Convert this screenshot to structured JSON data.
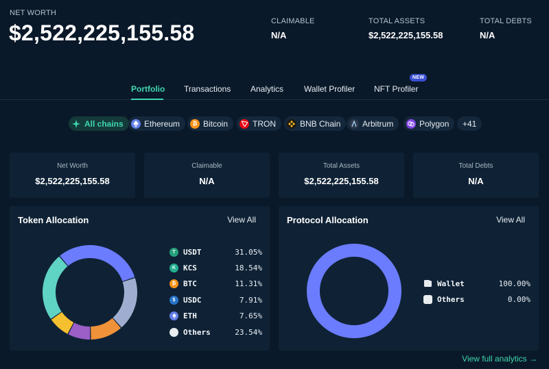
{
  "header": {
    "net_worth_label": "NET WORTH",
    "net_worth_value": "$2,522,225,155.58",
    "claimable_label": "CLAIMABLE",
    "claimable_value": "N/A",
    "total_assets_label": "TOTAL ASSETS",
    "total_assets_value": "$2,522,225,155.58",
    "total_debts_label": "TOTAL DEBTS",
    "total_debts_value": "N/A"
  },
  "tabs": [
    {
      "label": "Portfolio",
      "active": true
    },
    {
      "label": "Transactions"
    },
    {
      "label": "Analytics"
    },
    {
      "label": "Wallet Profiler"
    },
    {
      "label": "NFT Profiler"
    }
  ],
  "new_badge": "NEW",
  "chains": [
    {
      "label": "All chains",
      "icon": "sparkle-icon",
      "color": "#3fd6b0"
    },
    {
      "label": "Ethereum",
      "icon": "ethereum-icon",
      "color": "#627eea"
    },
    {
      "label": "Bitcoin",
      "icon": "bitcoin-icon",
      "color": "#f7931a"
    },
    {
      "label": "TRON",
      "icon": "tron-icon",
      "color": "#e50914"
    },
    {
      "label": "BNB Chain",
      "icon": "bnb-icon",
      "color": "#f3ba2f"
    },
    {
      "label": "Arbitrum",
      "icon": "arbitrum-icon",
      "color": "#2d374b"
    },
    {
      "label": "Polygon",
      "icon": "polygon-icon",
      "color": "#8247e5"
    },
    {
      "label": "+41"
    }
  ],
  "summary": [
    {
      "label": "Net Worth",
      "value": "$2,522,225,155.58"
    },
    {
      "label": "Claimable",
      "value": "N/A"
    },
    {
      "label": "Total Assets",
      "value": "$2,522,225,155.58"
    },
    {
      "label": "Total Debts",
      "value": "N/A"
    }
  ],
  "token_allocation": {
    "title": "Token Allocation",
    "view_all": "View All",
    "items": [
      {
        "symbol": "USDT",
        "pct": "31.05%",
        "value": 31.05,
        "color": "#6b7cff",
        "icon_color": "#26a17b"
      },
      {
        "symbol": "KCS",
        "pct": "18.54%",
        "value": 18.54,
        "color": "#9faed0",
        "icon_color": "#23af91"
      },
      {
        "symbol": "BTC",
        "pct": "11.31%",
        "value": 11.31,
        "color": "#f0923a",
        "icon_color": "#f7931a"
      },
      {
        "symbol": "USDC",
        "pct": "7.91%",
        "value": 7.91,
        "color": "#9b5fc7",
        "icon_color": "#2775ca"
      },
      {
        "symbol": "ETH",
        "pct": "7.65%",
        "value": 7.65,
        "color": "#f5c02f",
        "icon_color": "#627eea"
      },
      {
        "symbol": "Others",
        "pct": "23.54%",
        "value": 23.54,
        "color": "#5fd3c4",
        "icon_color": "#e8ecef"
      }
    ]
  },
  "protocol_allocation": {
    "title": "Protocol Allocation",
    "view_all": "View All",
    "items": [
      {
        "name": "Wallet",
        "pct": "100.00%",
        "value": 100.0,
        "color": "#6b7cff"
      },
      {
        "name": "Others",
        "pct": "0.00%",
        "value": 0.0,
        "color": "#e8ecef"
      }
    ]
  },
  "footer_link": "View full analytics →"
}
